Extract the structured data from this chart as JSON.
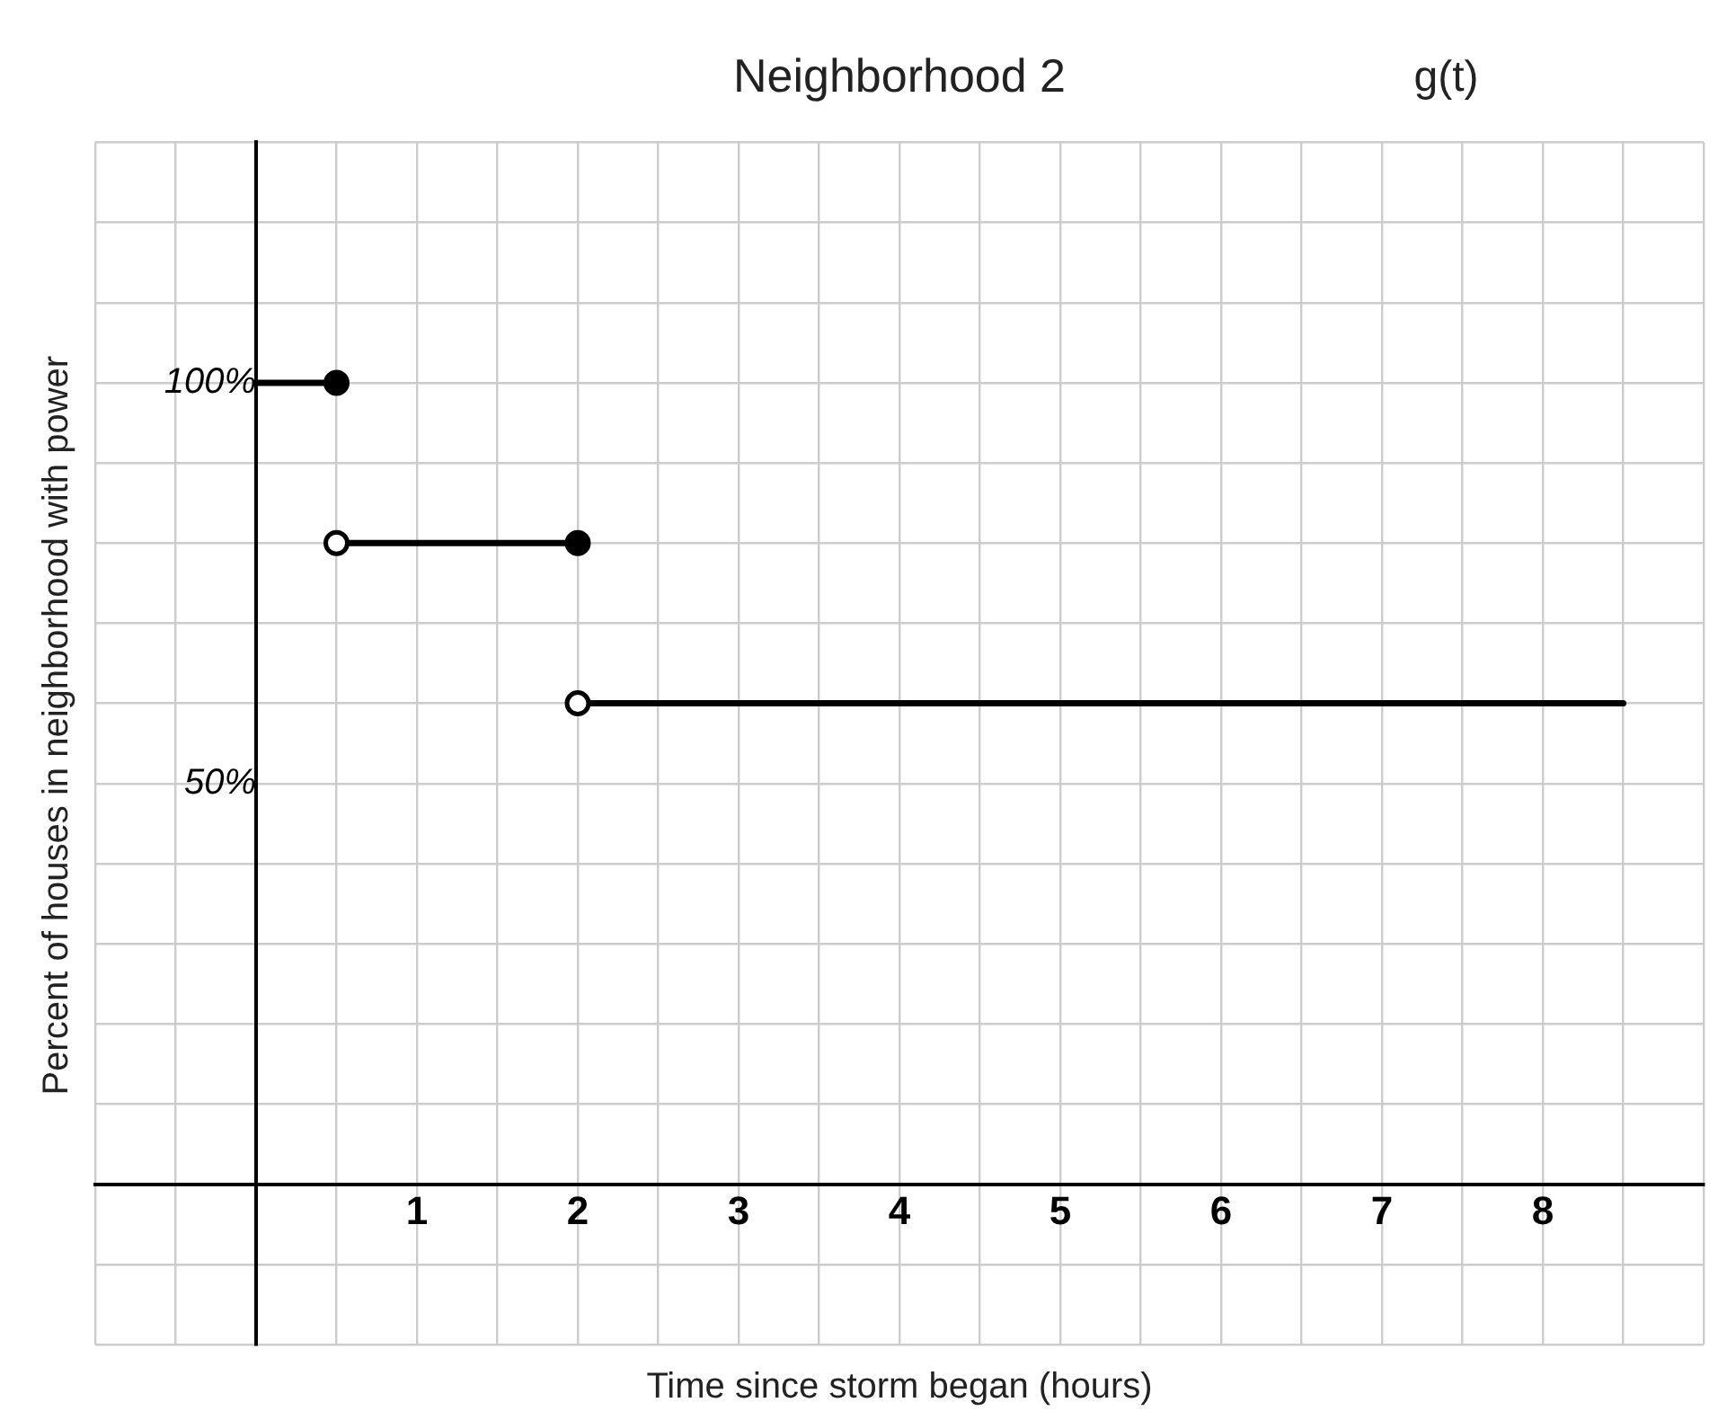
{
  "chart_data": {
    "type": "line",
    "title": "Neighborhood 2",
    "annotations": [
      "g(t)"
    ],
    "xlabel": "Time since storm began (hours)",
    "ylabel": "Percent of houses in neighborhood with power",
    "xlim": [
      -1,
      9
    ],
    "ylim": [
      -20,
      130
    ],
    "grid": true,
    "legend": false,
    "xticks": [
      {
        "value": -1,
        "label": null
      },
      {
        "value": -0.5,
        "label": null
      },
      {
        "value": 0,
        "label": null
      },
      {
        "value": 0.5,
        "label": null
      },
      1,
      {
        "value": 1.5,
        "label": null
      },
      2,
      {
        "value": 2.5,
        "label": null
      },
      3,
      {
        "value": 3.5,
        "label": null
      },
      4,
      {
        "value": 4.5,
        "label": null
      },
      5,
      {
        "value": 5.5,
        "label": null
      },
      6,
      {
        "value": 6.5,
        "label": null
      },
      7,
      {
        "value": 7.5,
        "label": null
      },
      8,
      {
        "value": 8.5,
        "label": null
      },
      {
        "value": 9,
        "label": null
      }
    ],
    "yticks": [
      {
        "value": -20,
        "label": null
      },
      {
        "value": -10,
        "label": null
      },
      {
        "value": 0,
        "label": null
      },
      {
        "value": 10,
        "label": null
      },
      {
        "value": 20,
        "label": null
      },
      {
        "value": 30,
        "label": null
      },
      {
        "value": 40,
        "label": null
      },
      {
        "value": 50,
        "label": "50%"
      },
      {
        "value": 60,
        "label": null
      },
      {
        "value": 70,
        "label": null
      },
      {
        "value": 80,
        "label": null
      },
      {
        "value": 90,
        "label": null
      },
      {
        "value": 100,
        "label": "100%"
      },
      {
        "value": 110,
        "label": null
      },
      {
        "value": 120,
        "label": null
      },
      {
        "value": 130,
        "label": null
      }
    ],
    "series": [
      {
        "x": [
          0,
          0.5
        ],
        "values": [
          100,
          100
        ],
        "color": "#000000",
        "marker": "none"
      },
      {
        "x": [
          0.5,
          2
        ],
        "values": [
          80,
          80
        ],
        "color": "#000000",
        "marker": "none"
      },
      {
        "x": [
          2,
          8.5
        ],
        "values": [
          60,
          60
        ],
        "color": "#000000",
        "marker": "none"
      },
      {
        "type": "scatter",
        "x": [
          0.5,
          2
        ],
        "values": [
          100,
          80
        ],
        "color": "#000000",
        "marker": "circle"
      },
      {
        "type": "scatter",
        "x": [
          0.5,
          2
        ],
        "values": [
          80,
          60
        ],
        "color": "#000000",
        "colors": [
          "#ffffff",
          "#ffffff"
        ],
        "marker": "circle"
      }
    ]
  }
}
